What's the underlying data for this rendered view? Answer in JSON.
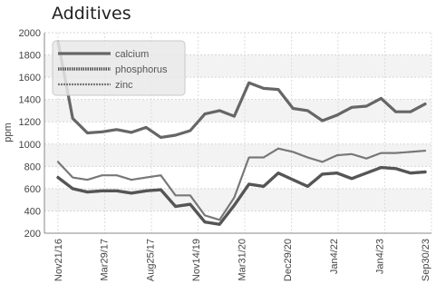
{
  "chart_data": {
    "type": "line",
    "title": "Additives",
    "ylabel": "ppm",
    "xlabel": "",
    "ylim": [
      200,
      2000
    ],
    "yticks": [
      200,
      400,
      600,
      800,
      1000,
      1200,
      1400,
      1600,
      1800,
      2000
    ],
    "x_labels": [
      "Nov21/16",
      "Mar29/17",
      "Aug25/17",
      "Nov14/19",
      "Mar31/20",
      "Dec29/20",
      "Jan4/22",
      "Jan4/23",
      "Sep30/23"
    ],
    "x_label_index": [
      0,
      4,
      8,
      12,
      16,
      20,
      24,
      28,
      32
    ],
    "grid": true,
    "legend_position": "top-left",
    "series": [
      {
        "name": "calcium",
        "style": "solid",
        "values": [
          1920,
          1230,
          1100,
          1110,
          1130,
          1105,
          1150,
          1060,
          1080,
          1120,
          1270,
          1300,
          1250,
          1550,
          1500,
          1490,
          1320,
          1300,
          1210,
          1260,
          1330,
          1340,
          1410,
          1290,
          1290,
          1360
        ]
      },
      {
        "name": "phosphorus",
        "style": "dotted",
        "values": [
          700,
          600,
          570,
          580,
          580,
          560,
          580,
          590,
          440,
          460,
          300,
          280,
          450,
          640,
          620,
          740,
          680,
          620,
          730,
          740,
          690,
          740,
          790,
          780,
          740,
          750
        ]
      },
      {
        "name": "zinc",
        "style": "dashed",
        "values": [
          840,
          700,
          680,
          720,
          720,
          680,
          700,
          720,
          540,
          540,
          360,
          320,
          520,
          880,
          880,
          960,
          930,
          880,
          840,
          900,
          910,
          870,
          920,
          920,
          930,
          940
        ]
      }
    ]
  }
}
